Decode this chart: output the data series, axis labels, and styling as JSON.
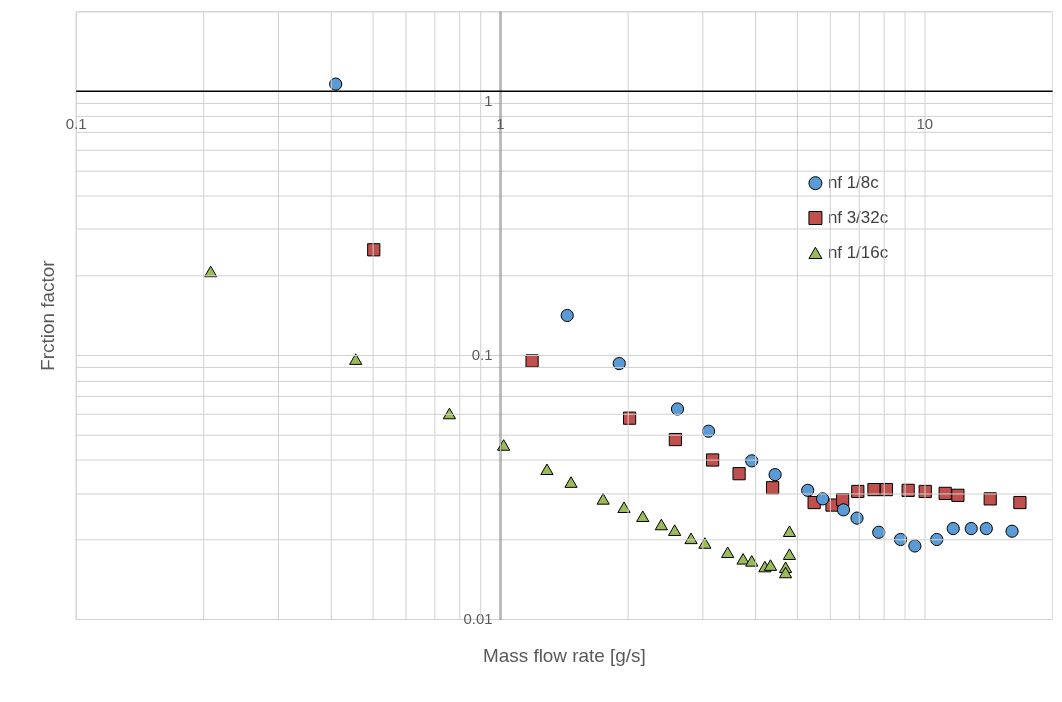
{
  "chart_data": {
    "type": "scatter",
    "xlabel": "Mass flow rate [g/s]",
    "ylabel": "Frction factor",
    "log": "xy",
    "grid": true,
    "legend": "top right",
    "xlim": [
      0.1,
      20
    ],
    "ylim": [
      0.01,
      2
    ],
    "xticks": [
      0.1,
      {
        "value": 0.2,
        "label": null
      },
      {
        "value": 0.3,
        "label": null
      },
      {
        "value": 0.4,
        "label": null
      },
      {
        "value": 0.5,
        "label": null
      },
      {
        "value": 0.6,
        "label": null
      },
      {
        "value": 0.7,
        "label": null
      },
      {
        "value": 0.8,
        "label": null
      },
      {
        "value": 0.9,
        "label": null
      },
      1,
      {
        "value": 2,
        "label": null
      },
      {
        "value": 3,
        "label": null
      },
      {
        "value": 4,
        "label": null
      },
      {
        "value": 5,
        "label": null
      },
      {
        "value": 6,
        "label": null
      },
      {
        "value": 7,
        "label": null
      },
      {
        "value": 8,
        "label": null
      },
      {
        "value": 9,
        "label": null
      },
      10
    ],
    "yticks": [
      0.01,
      {
        "value": 0.02,
        "label": null
      },
      {
        "value": 0.03,
        "label": null
      },
      {
        "value": 0.04,
        "label": null
      },
      {
        "value": 0.05,
        "label": null
      },
      {
        "value": 0.06,
        "label": null
      },
      {
        "value": 0.07,
        "label": null
      },
      {
        "value": 0.08,
        "label": null
      },
      {
        "value": 0.09,
        "label": null
      },
      0.1,
      {
        "value": 0.2,
        "label": null
      },
      {
        "value": 0.3,
        "label": null
      },
      {
        "value": 0.4,
        "label": null
      },
      {
        "value": 0.5,
        "label": null
      },
      {
        "value": 0.6,
        "label": null
      },
      {
        "value": 0.7,
        "label": null
      },
      {
        "value": 0.8,
        "label": null
      },
      {
        "value": 0.9,
        "label": null
      },
      1,
      {
        "value": 2,
        "label": null
      }
    ],
    "series": [
      {
        "name": "nf 1/8c",
        "color": "#5b9bd5",
        "marker": "circle",
        "x": [
          0.41,
          1.44,
          1.91,
          2.62,
          3.1,
          3.92,
          4.45,
          5.31,
          5.76,
          6.45,
          6.94,
          7.81,
          8.79,
          9.5,
          10.7,
          11.7,
          12.9,
          14.0,
          16.1
        ],
        "values": [
          1.06,
          0.141,
          0.0927,
          0.0624,
          0.0514,
          0.0397,
          0.0352,
          0.0307,
          0.0285,
          0.0259,
          0.0241,
          0.0213,
          0.02,
          0.0189,
          0.02,
          0.022,
          0.022,
          0.022,
          0.0215
        ]
      },
      {
        "name": "nf 3/32c",
        "color": "#c0504d",
        "marker": "square",
        "x": [
          0.504,
          1.19,
          2.02,
          2.59,
          3.17,
          3.66,
          4.39,
          5.5,
          6.06,
          6.42,
          6.97,
          7.61,
          8.14,
          9.16,
          10.05,
          11.2,
          12.0,
          14.3,
          16.8
        ],
        "values": [
          0.25,
          0.0949,
          0.0576,
          0.0478,
          0.04,
          0.0355,
          0.0314,
          0.0276,
          0.027,
          0.0283,
          0.0304,
          0.0309,
          0.0309,
          0.0307,
          0.0304,
          0.0299,
          0.0294,
          0.0285,
          0.0276
        ]
      },
      {
        "name": "nf 1/16c",
        "color": "#9bbb59",
        "marker": "triangle",
        "x": [
          0.208,
          0.457,
          0.76,
          1.02,
          1.29,
          1.47,
          1.75,
          1.96,
          2.17,
          2.4,
          2.58,
          2.82,
          3.04,
          3.44,
          3.74,
          3.92,
          4.21,
          4.34,
          4.71,
          4.71,
          4.81,
          4.81
        ],
        "values": [
          0.207,
          0.0964,
          0.06,
          0.0456,
          0.0369,
          0.033,
          0.0285,
          0.0265,
          0.0245,
          0.0228,
          0.0217,
          0.0202,
          0.0194,
          0.0179,
          0.0169,
          0.0166,
          0.0158,
          0.016,
          0.0157,
          0.015,
          0.0215,
          0.0176
        ]
      }
    ]
  }
}
